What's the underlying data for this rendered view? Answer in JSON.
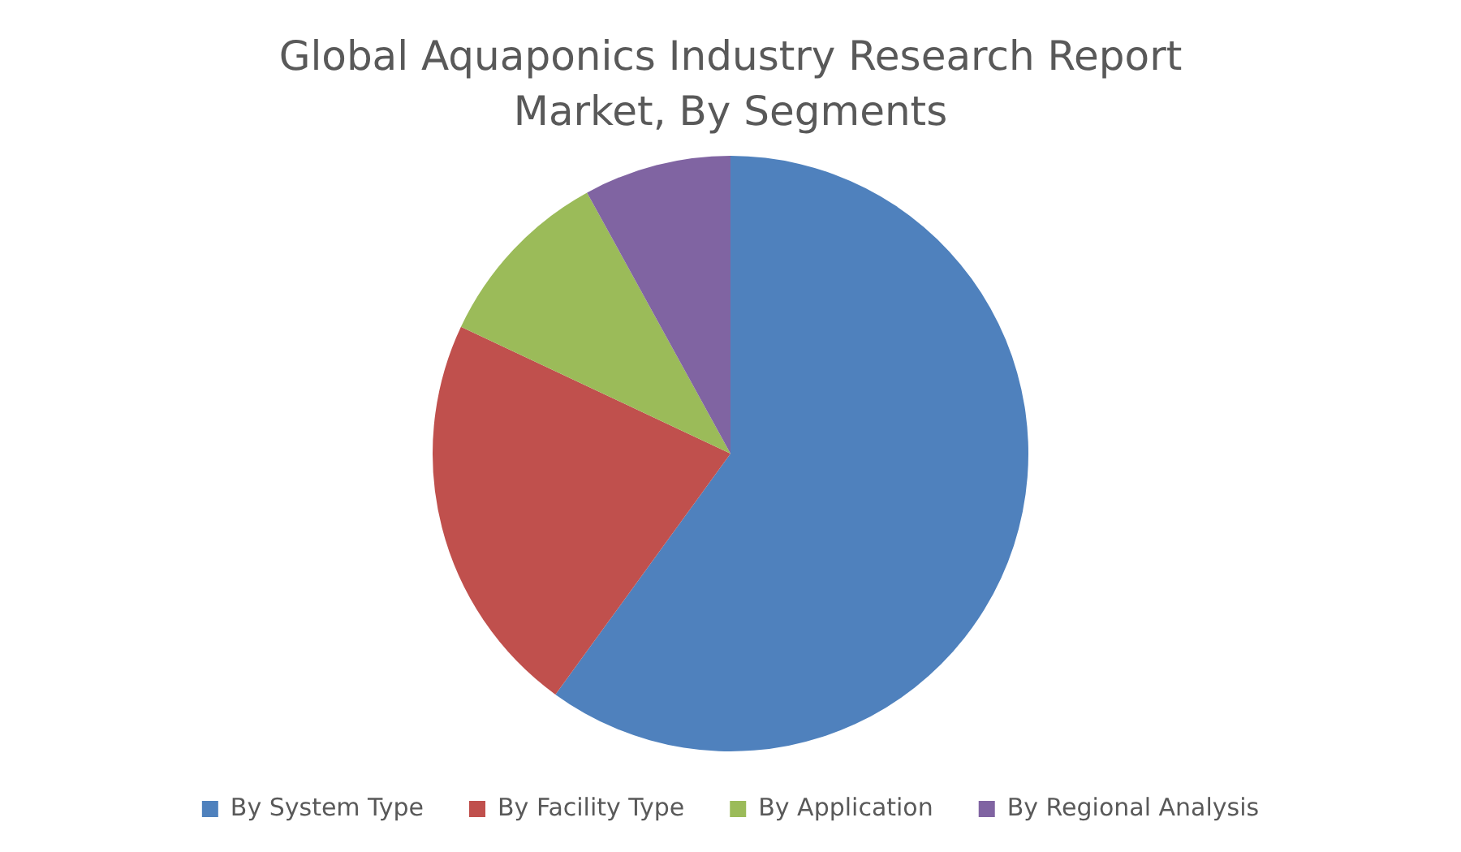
{
  "chart_data": {
    "type": "pie",
    "title": "Global Aquaponics Industry Research Report Market, By Segments",
    "categories": [
      "By System Type",
      "By Facility Type",
      "By Application",
      "By Regional Analysis"
    ],
    "values": [
      60,
      22,
      10,
      8
    ],
    "colors": [
      "#4f81bd",
      "#c0504d",
      "#9bbb59",
      "#8064a2"
    ],
    "legend": "bottom"
  }
}
